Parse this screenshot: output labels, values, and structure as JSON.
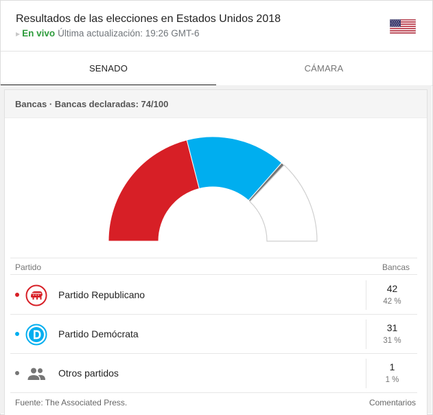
{
  "header": {
    "title": "Resultados de las elecciones en Estados Unidos 2018",
    "live_label": "En vivo",
    "updated_text": "Última actualización: 19:26 GMT-6",
    "flag_icon": "us-flag-icon"
  },
  "tabs": [
    {
      "label": "SENADO",
      "active": true
    },
    {
      "label": "CÁMARA",
      "active": false
    }
  ],
  "panel": {
    "header_text": "Bancas · Bancas declaradas: 74/100"
  },
  "chart_data": {
    "type": "semicircle-donut",
    "total_seats": 100,
    "declared": 74,
    "segments": [
      {
        "name": "Partido Republicano",
        "value": 42,
        "color": "#d71f26"
      },
      {
        "name": "Partido Demócrata",
        "value": 31,
        "color": "#00aeef"
      },
      {
        "name": "Otros partidos",
        "value": 1,
        "color": "#767676"
      },
      {
        "name": "",
        "value": 26,
        "color": "#ffffff"
      }
    ]
  },
  "table": {
    "col_party": "Partido",
    "col_seats": "Bancas",
    "rows": [
      {
        "name": "Partido Republicano",
        "seats": "42",
        "pct": "42 %",
        "color": "#d71f26",
        "icon": "republican-elephant-icon"
      },
      {
        "name": "Partido Demócrata",
        "seats": "31",
        "pct": "31 %",
        "color": "#00aeef",
        "icon": "democrat-d-icon"
      },
      {
        "name": "Otros partidos",
        "seats": "1",
        "pct": "1 %",
        "color": "#767676",
        "icon": "people-group-icon"
      }
    ]
  },
  "footer": {
    "source": "Fuente: The Associated Press.",
    "comments": "Comentarios"
  }
}
